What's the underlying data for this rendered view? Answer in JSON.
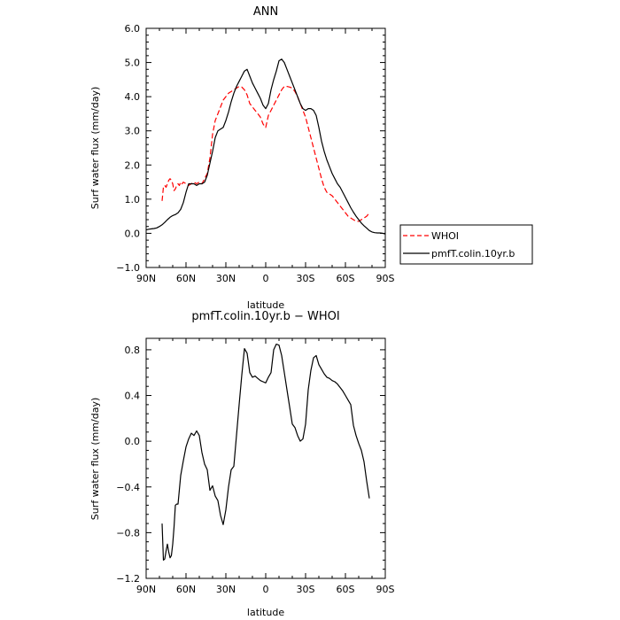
{
  "chart_data": [
    {
      "type": "line",
      "title": "ANN",
      "xlabel": "latitude",
      "ylabel": "Surf water flux (mm/day)",
      "xlim": [
        90,
        -90
      ],
      "ylim": [
        -1.0,
        6.0
      ],
      "x_ticks": [
        90,
        60,
        30,
        0,
        -30,
        -60,
        -90
      ],
      "x_tick_labels": [
        "90N",
        "60N",
        "30N",
        "0",
        "30S",
        "60S",
        "90S"
      ],
      "y_ticks": [
        -1.0,
        0.0,
        1.0,
        2.0,
        3.0,
        4.0,
        5.0,
        6.0
      ],
      "y_tick_labels": [
        "−1.0",
        "0.0",
        "1.0",
        "2.0",
        "3.0",
        "4.0",
        "5.0",
        "6.0"
      ],
      "legend": "outside-right",
      "series": [
        {
          "name": "WHOI",
          "color": "#ff0000",
          "dash": true,
          "x": [
            78,
            77,
            76,
            75,
            74,
            73,
            72,
            71,
            70,
            69,
            68,
            67,
            66,
            65,
            64,
            63,
            62,
            60,
            58,
            56,
            54,
            52,
            50,
            48,
            46,
            44,
            42,
            40,
            38,
            35,
            32,
            28,
            24,
            20,
            18,
            16,
            14,
            12,
            10,
            8,
            6,
            4,
            2,
            0,
            -2,
            -4,
            -6,
            -8,
            -10,
            -12,
            -14,
            -16,
            -18,
            -20,
            -22,
            -24,
            -26,
            -28,
            -30,
            -32,
            -34,
            -36,
            -38,
            -40,
            -42,
            -44,
            -46,
            -48,
            -50,
            -52,
            -54,
            -56,
            -58,
            -60,
            -62,
            -64,
            -66,
            -68,
            -70,
            -72,
            -74,
            -76,
            -78
          ],
          "values": [
            0.95,
            1.35,
            1.4,
            1.35,
            1.45,
            1.55,
            1.6,
            1.55,
            1.45,
            1.25,
            1.3,
            1.4,
            1.45,
            1.4,
            1.5,
            1.45,
            1.5,
            1.45,
            1.4,
            1.45,
            1.5,
            1.45,
            1.5,
            1.45,
            1.6,
            1.75,
            2.2,
            2.9,
            3.3,
            3.6,
            3.9,
            4.1,
            4.2,
            4.3,
            4.28,
            4.2,
            4.05,
            3.8,
            3.7,
            3.6,
            3.5,
            3.4,
            3.2,
            3.1,
            3.45,
            3.6,
            3.75,
            3.9,
            4.05,
            4.2,
            4.3,
            4.3,
            4.28,
            4.25,
            4.15,
            4.0,
            3.8,
            3.6,
            3.4,
            3.1,
            2.8,
            2.5,
            2.2,
            1.9,
            1.6,
            1.35,
            1.2,
            1.15,
            1.1,
            1.0,
            0.9,
            0.8,
            0.7,
            0.6,
            0.5,
            0.45,
            0.4,
            0.35,
            0.35,
            0.4,
            0.45,
            0.5,
            0.6
          ]
        },
        {
          "name": "pmfT.colin.10yr.b",
          "color": "#000000",
          "dash": false,
          "x": [
            90,
            88,
            86,
            84,
            82,
            80,
            78,
            76,
            74,
            72,
            70,
            68,
            66,
            64,
            62,
            60,
            58,
            56,
            54,
            52,
            50,
            48,
            46,
            44,
            42,
            40,
            38,
            36,
            34,
            32,
            30,
            28,
            26,
            24,
            22,
            20,
            18,
            16,
            14,
            12,
            10,
            8,
            6,
            4,
            2,
            0,
            -2,
            -4,
            -6,
            -8,
            -10,
            -12,
            -14,
            -16,
            -18,
            -20,
            -22,
            -24,
            -26,
            -28,
            -30,
            -32,
            -34,
            -36,
            -38,
            -40,
            -42,
            -44,
            -46,
            -48,
            -50,
            -52,
            -54,
            -56,
            -58,
            -60,
            -62,
            -64,
            -66,
            -68,
            -70,
            -72,
            -74,
            -76,
            -78,
            -80,
            -82,
            -84,
            -86,
            -88,
            -90
          ],
          "values": [
            0.1,
            0.12,
            0.13,
            0.14,
            0.16,
            0.2,
            0.25,
            0.32,
            0.4,
            0.47,
            0.52,
            0.55,
            0.6,
            0.7,
            0.9,
            1.2,
            1.45,
            1.45,
            1.45,
            1.4,
            1.45,
            1.45,
            1.5,
            1.7,
            2.05,
            2.4,
            2.8,
            3.0,
            3.05,
            3.1,
            3.3,
            3.55,
            3.85,
            4.1,
            4.3,
            4.45,
            4.6,
            4.75,
            4.8,
            4.6,
            4.4,
            4.25,
            4.1,
            3.95,
            3.75,
            3.65,
            3.8,
            4.2,
            4.5,
            4.75,
            5.05,
            5.1,
            5.0,
            4.8,
            4.6,
            4.4,
            4.2,
            4.0,
            3.8,
            3.65,
            3.6,
            3.65,
            3.65,
            3.6,
            3.45,
            3.1,
            2.7,
            2.4,
            2.15,
            1.95,
            1.75,
            1.6,
            1.45,
            1.35,
            1.2,
            1.05,
            0.9,
            0.75,
            0.62,
            0.5,
            0.4,
            0.3,
            0.22,
            0.15,
            0.08,
            0.04,
            0.02,
            0.01,
            0.01,
            0.0,
            -0.02
          ]
        }
      ]
    },
    {
      "type": "line",
      "title": "pmfT.colin.10yr.b − WHOI",
      "xlabel": "latitude",
      "ylabel": "Surf water flux (mm/day)",
      "xlim": [
        90,
        -90
      ],
      "ylim": [
        -1.2,
        0.9
      ],
      "x_ticks": [
        90,
        60,
        30,
        0,
        -30,
        -60,
        -90
      ],
      "x_tick_labels": [
        "90N",
        "60N",
        "30N",
        "0",
        "30S",
        "60S",
        "90S"
      ],
      "y_ticks": [
        -1.2,
        -0.8,
        -0.4,
        0.0,
        0.4,
        0.8
      ],
      "y_tick_labels": [
        "−1.2",
        "−0.8",
        "−0.4",
        "0.0",
        "0.4",
        "0.8"
      ],
      "series": [
        {
          "color": "#000000",
          "dash": false,
          "x": [
            78,
            77,
            76,
            75,
            74,
            73,
            72,
            71,
            70,
            69,
            68,
            67,
            66,
            64,
            62,
            60,
            58,
            56,
            54,
            52,
            50,
            48,
            46,
            44,
            42,
            40,
            38,
            36,
            34,
            32,
            30,
            28,
            26,
            24,
            22,
            20,
            18,
            16,
            14,
            12,
            10,
            8,
            6,
            4,
            2,
            0,
            -2,
            -4,
            -6,
            -8,
            -10,
            -12,
            -14,
            -16,
            -18,
            -20,
            -22,
            -24,
            -26,
            -28,
            -30,
            -32,
            -34,
            -36,
            -38,
            -40,
            -42,
            -44,
            -46,
            -48,
            -50,
            -52,
            -54,
            -56,
            -58,
            -60,
            -62,
            -64,
            -66,
            -68,
            -70,
            -72,
            -74,
            -76,
            -78
          ],
          "values": [
            -0.72,
            -1.04,
            -1.03,
            -0.96,
            -0.9,
            -0.97,
            -1.02,
            -1.0,
            -0.9,
            -0.75,
            -0.56,
            -0.55,
            -0.55,
            -0.3,
            -0.17,
            -0.05,
            0.02,
            0.07,
            0.05,
            0.09,
            0.05,
            -0.1,
            -0.2,
            -0.25,
            -0.43,
            -0.39,
            -0.48,
            -0.52,
            -0.65,
            -0.73,
            -0.6,
            -0.4,
            -0.25,
            -0.22,
            0.05,
            0.32,
            0.58,
            0.81,
            0.77,
            0.6,
            0.56,
            0.57,
            0.55,
            0.53,
            0.52,
            0.51,
            0.56,
            0.6,
            0.8,
            0.85,
            0.84,
            0.75,
            0.6,
            0.45,
            0.3,
            0.15,
            0.12,
            0.05,
            0.0,
            0.02,
            0.15,
            0.45,
            0.62,
            0.73,
            0.75,
            0.67,
            0.63,
            0.59,
            0.56,
            0.55,
            0.53,
            0.52,
            0.5,
            0.47,
            0.44,
            0.4,
            0.36,
            0.32,
            0.14,
            0.05,
            -0.02,
            -0.08,
            -0.18,
            -0.35,
            -0.5
          ]
        }
      ]
    }
  ]
}
